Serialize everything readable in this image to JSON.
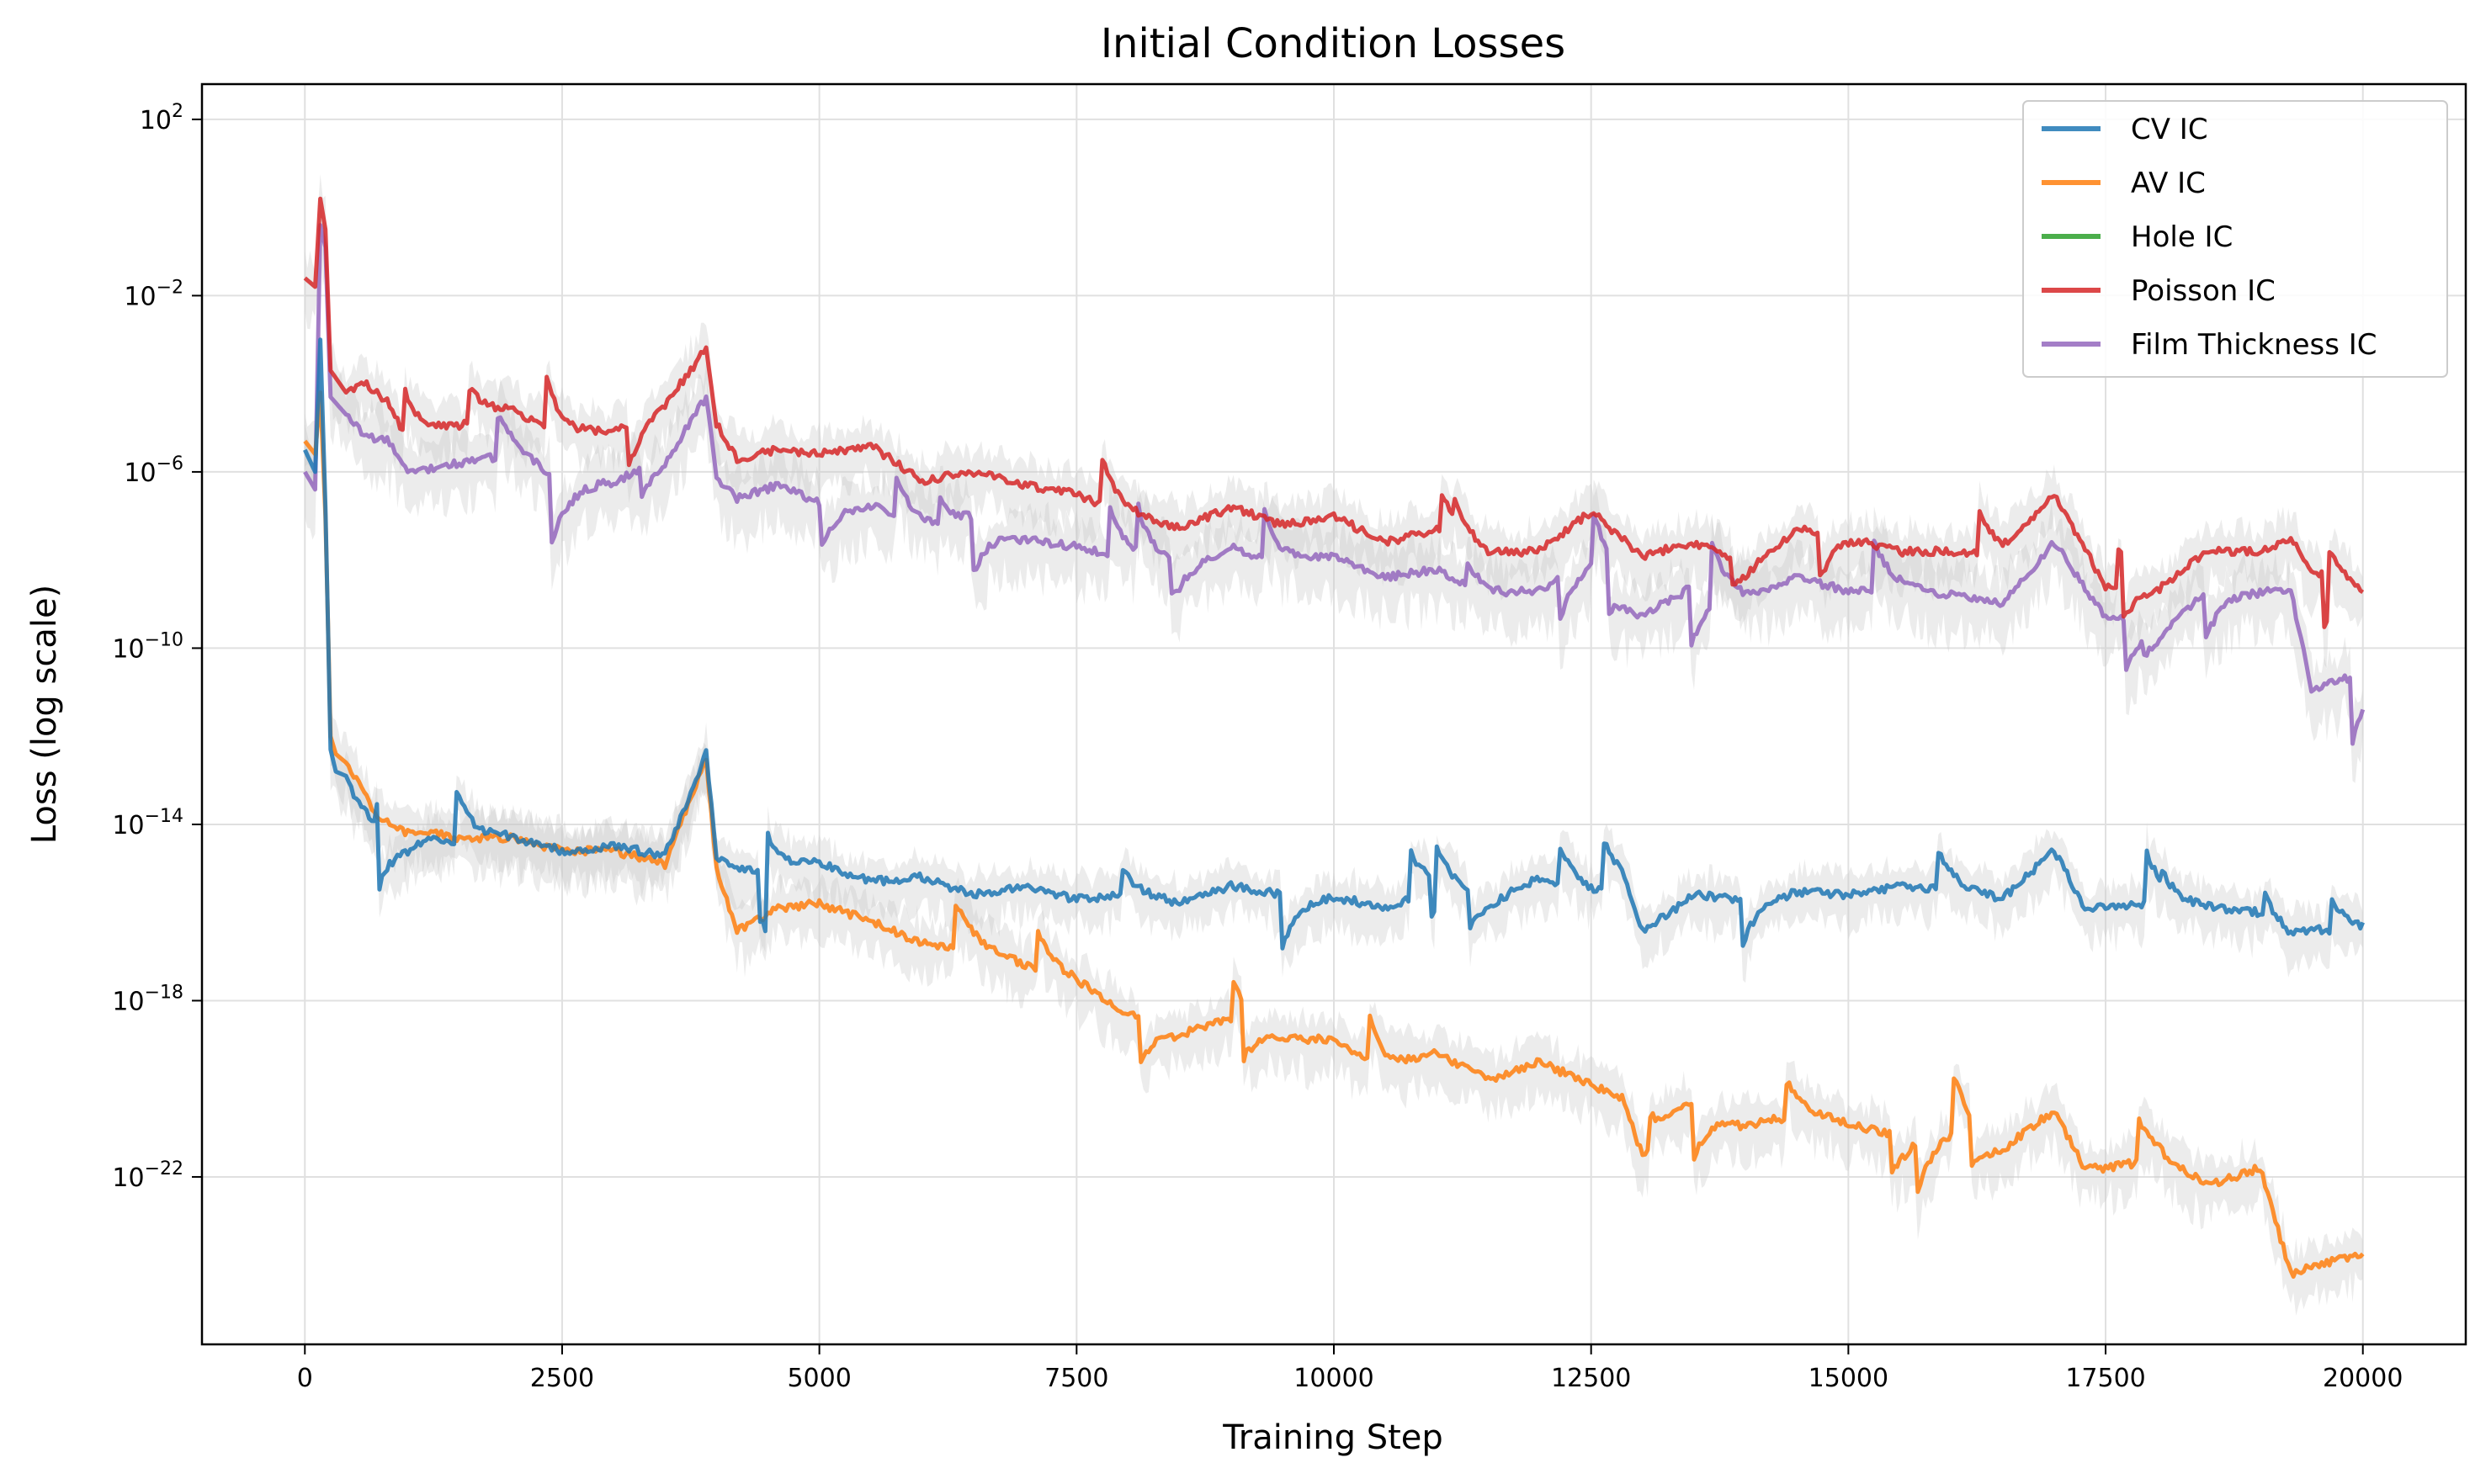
{
  "chart_data": {
    "type": "line",
    "title": "Initial Condition Losses",
    "xlabel": "Training Step",
    "ylabel": "Loss (log scale)",
    "xlim": [
      -1000,
      21000
    ],
    "ylim_log10": [
      -25.8,
      2.8
    ],
    "yscale": "log",
    "grid": true,
    "legend_position": "top-right",
    "x_ticks": [
      0,
      2500,
      5000,
      7500,
      10000,
      12500,
      15000,
      17500,
      20000
    ],
    "x_tick_labels": [
      "0",
      "2500",
      "5000",
      "7500",
      "10000",
      "12500",
      "15000",
      "17500",
      "20000"
    ],
    "y_ticks_log10": [
      2,
      -2,
      -6,
      -10,
      -14,
      -18,
      -22
    ],
    "y_tick_labels": [
      {
        "base": "10",
        "exp": "2"
      },
      {
        "base": "10",
        "exp": "−2"
      },
      {
        "base": "10",
        "exp": "−6"
      },
      {
        "base": "10",
        "exp": "−10"
      },
      {
        "base": "10",
        "exp": "−14"
      },
      {
        "base": "10",
        "exp": "−18"
      },
      {
        "base": "10",
        "exp": "−22"
      }
    ],
    "series": [
      {
        "name": "Poisson IC",
        "color": "#d62728",
        "x": [
          0,
          100,
          150,
          200,
          250,
          400,
          600,
          800,
          1000,
          1500,
          2000,
          2500,
          3000,
          3500,
          3900,
          4000,
          4200,
          4600,
          5000,
          5500,
          6000,
          6500,
          7000,
          7500,
          8000,
          8500,
          9000,
          9500,
          10000,
          10500,
          11000,
          11500,
          12000,
          12500,
          13000,
          13500,
          14000,
          14500,
          15000,
          15500,
          16000,
          16500,
          17000,
          17500,
          18000,
          18500,
          19000,
          19300,
          19500,
          20000
        ],
        "log10_values": [
          -1.6,
          -1.8,
          0.2,
          -0.5,
          -3.7,
          -4.2,
          -4.0,
          -4.4,
          -5.3,
          -5.0,
          -4.6,
          -5.2,
          -5.1,
          -4.4,
          -3.2,
          -4.9,
          -5.7,
          -5.5,
          -5.6,
          -5.4,
          -6.2,
          -6.0,
          -6.3,
          -6.5,
          -7.0,
          -7.3,
          -6.8,
          -7.2,
          -7.0,
          -7.6,
          -7.3,
          -7.9,
          -7.8,
          -6.9,
          -7.9,
          -7.6,
          -8.1,
          -7.3,
          -7.4,
          -7.8,
          -7.8,
          -7.9,
          -6.5,
          -8.6,
          -8.6,
          -7.8,
          -7.8,
          -7.5,
          -8.2,
          -8.8
        ],
        "noise_amp": 0.55,
        "bumps": 0.9
      },
      {
        "name": "Film Thickness IC",
        "color": "#9467bd",
        "x": [
          0,
          100,
          150,
          200,
          250,
          400,
          600,
          800,
          1000,
          1500,
          2000,
          2500,
          3000,
          3500,
          3900,
          4000,
          4200,
          4600,
          5000,
          5500,
          6000,
          6500,
          7000,
          7500,
          8000,
          8500,
          9000,
          9500,
          10000,
          10500,
          11000,
          11500,
          12000,
          12500,
          13000,
          13500,
          14000,
          14500,
          15000,
          15500,
          16000,
          16500,
          17000,
          17500,
          18000,
          18500,
          19000,
          19300,
          19500,
          20000
        ],
        "log10_values": [
          -6.0,
          -6.4,
          -0.4,
          -0.9,
          -4.3,
          -4.7,
          -5.2,
          -5.3,
          -6.0,
          -5.8,
          -5.6,
          -6.2,
          -6.2,
          -5.7,
          -4.3,
          -6.1,
          -6.6,
          -6.3,
          -6.7,
          -6.7,
          -7.3,
          -7.1,
          -7.5,
          -7.7,
          -8.0,
          -8.2,
          -7.7,
          -8.1,
          -7.9,
          -8.4,
          -8.2,
          -8.8,
          -8.7,
          -8.0,
          -9.2,
          -8.6,
          -8.9,
          -8.4,
          -8.7,
          -8.7,
          -8.8,
          -9.0,
          -7.6,
          -9.3,
          -9.5,
          -8.7,
          -8.7,
          -8.7,
          -10.9,
          -10.6
        ],
        "noise_amp": 0.65,
        "bumps": 0.9
      },
      {
        "name": "Hole IC",
        "color": "#2ca02c",
        "x": [
          0,
          20000
        ],
        "log10_values": [
          null,
          null
        ],
        "noise_amp": 0,
        "bumps": 0
      },
      {
        "name": "CV IC",
        "color": "#1f77b4",
        "x": [
          0,
          100,
          150,
          200,
          250,
          300,
          400,
          500,
          700,
          1000,
          1200,
          1500,
          2000,
          2500,
          3000,
          3500,
          3900,
          4000,
          4200,
          4600,
          5000,
          5500,
          6000,
          6500,
          7000,
          7500,
          8000,
          8500,
          9000,
          9500,
          10000,
          10500,
          11000,
          11500,
          12000,
          12500,
          12800,
          13000,
          13500,
          14000,
          14500,
          15000,
          15500,
          16000,
          16500,
          17000,
          17300,
          17500,
          18000,
          18500,
          19000,
          19300,
          19500,
          20000
        ],
        "log10_values": [
          -5.5,
          -6.0,
          -3.0,
          -6.8,
          -12.3,
          -12.8,
          -12.9,
          -13.5,
          -14.0,
          -14.4,
          -14.2,
          -14.4,
          -14.3,
          -14.6,
          -14.5,
          -14.7,
          -12.4,
          -14.8,
          -15.0,
          -15.1,
          -14.9,
          -15.3,
          -15.2,
          -15.6,
          -15.4,
          -15.7,
          -15.6,
          -15.8,
          -15.4,
          -15.6,
          -15.6,
          -15.9,
          -15.4,
          -15.7,
          -15.2,
          -15.6,
          -15.4,
          -16.5,
          -15.6,
          -15.7,
          -15.5,
          -15.6,
          -15.4,
          -15.5,
          -15.7,
          -14.6,
          -15.9,
          -15.9,
          -15.8,
          -15.9,
          -16.0,
          -16.6,
          -16.4,
          -16.4
        ],
        "noise_amp": 0.5,
        "bumps": 0.9
      },
      {
        "name": "AV IC",
        "color": "#ff7f0e",
        "x": [
          0,
          100,
          150,
          200,
          250,
          300,
          400,
          500,
          700,
          1000,
          1200,
          1500,
          2000,
          2500,
          3000,
          3500,
          3900,
          4000,
          4200,
          4600,
          5000,
          5500,
          6000,
          6500,
          7000,
          7500,
          8000,
          8500,
          9000,
          9500,
          10000,
          10500,
          11000,
          11500,
          12000,
          12500,
          12800,
          13000,
          13500,
          14000,
          14500,
          15000,
          15500,
          16000,
          16500,
          17000,
          17300,
          17500,
          18000,
          18500,
          19000,
          19300,
          19500,
          20000
        ],
        "log10_values": [
          -5.3,
          -5.6,
          -4.2,
          -7.0,
          -12.0,
          -12.4,
          -12.6,
          -13.0,
          -13.8,
          -14.2,
          -14.2,
          -14.3,
          -14.3,
          -14.6,
          -14.6,
          -14.9,
          -12.5,
          -15.0,
          -16.4,
          -15.9,
          -15.8,
          -16.2,
          -16.7,
          -16.8,
          -17.2,
          -17.6,
          -18.3,
          -18.7,
          -18.4,
          -18.8,
          -18.9,
          -19.6,
          -19.2,
          -19.8,
          -19.4,
          -19.9,
          -20.2,
          -21.5,
          -20.3,
          -20.8,
          -20.6,
          -20.8,
          -21.1,
          -20.9,
          -21.3,
          -20.5,
          -21.8,
          -21.8,
          -21.6,
          -22.2,
          -21.8,
          -24.2,
          -24.0,
          -23.8
        ],
        "noise_amp": 0.55,
        "bumps": 0.9
      }
    ]
  }
}
